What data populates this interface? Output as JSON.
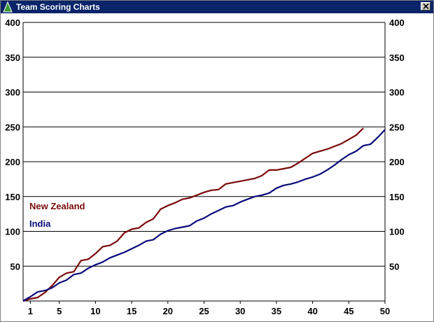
{
  "window": {
    "title": "Team Scoring Charts",
    "icon": "triangle-app-icon",
    "close_icon": "close-icon"
  },
  "chart_data": {
    "type": "line",
    "title": "",
    "xlabel": "",
    "ylabel": "",
    "xlim": [
      0,
      50
    ],
    "ylim": [
      0,
      400
    ],
    "x_ticks": [
      "1",
      "5",
      "10",
      "15",
      "20",
      "25",
      "30",
      "35",
      "40",
      "45",
      "50"
    ],
    "y_ticks_left": [
      "50",
      "100",
      "150",
      "200",
      "250",
      "300",
      "350",
      "400"
    ],
    "y_ticks_right": [
      "50",
      "100",
      "150",
      "200",
      "250",
      "300",
      "350",
      "400"
    ],
    "grid": "horizontal",
    "legend_position": "left-middle",
    "series": [
      {
        "name": "New Zealand",
        "color": "#7b0a0a",
        "x": [
          0,
          1,
          2,
          3,
          4,
          5,
          6,
          7,
          8,
          9,
          10,
          11,
          12,
          13,
          14,
          15,
          16,
          17,
          18,
          19,
          20,
          21,
          22,
          23,
          24,
          25,
          26,
          27,
          28,
          29,
          30,
          31,
          32,
          33,
          34,
          35,
          36,
          37,
          38,
          39,
          40,
          41,
          42,
          43,
          44,
          45,
          46,
          47
        ],
        "y": [
          0,
          3,
          5,
          12,
          22,
          34,
          40,
          42,
          58,
          60,
          68,
          78,
          80,
          86,
          98,
          103,
          105,
          113,
          118,
          132,
          137,
          141,
          146,
          148,
          152,
          156,
          159,
          160,
          168,
          170,
          172,
          174,
          176,
          180,
          188,
          188,
          190,
          192,
          198,
          205,
          212,
          215,
          218,
          222,
          226,
          232,
          238,
          248
        ]
      },
      {
        "name": "India",
        "color": "#0a0a7a",
        "x": [
          0,
          1,
          2,
          3,
          4,
          5,
          6,
          7,
          8,
          9,
          10,
          11,
          12,
          13,
          14,
          15,
          16,
          17,
          18,
          19,
          20,
          21,
          22,
          23,
          24,
          25,
          26,
          27,
          28,
          29,
          30,
          31,
          32,
          33,
          34,
          35,
          36,
          37,
          38,
          39,
          40,
          41,
          42,
          43,
          44,
          45,
          46,
          47,
          48,
          49,
          50
        ],
        "y": [
          0,
          6,
          13,
          15,
          19,
          26,
          30,
          38,
          40,
          47,
          52,
          56,
          62,
          66,
          70,
          75,
          80,
          86,
          88,
          96,
          101,
          104,
          106,
          108,
          115,
          119,
          125,
          130,
          135,
          137,
          142,
          146,
          150,
          152,
          155,
          162,
          166,
          168,
          171,
          175,
          178,
          182,
          188,
          195,
          203,
          210,
          215,
          223,
          225,
          235,
          246
        ]
      }
    ]
  }
}
